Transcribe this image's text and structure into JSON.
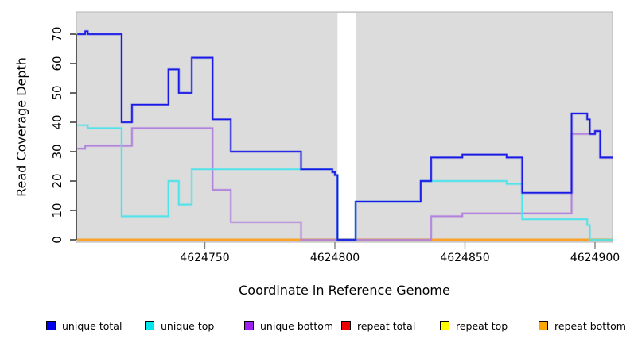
{
  "chart_data": {
    "type": "line",
    "subtype": "step-function-coverage-plot",
    "title": "",
    "xlabel": "Coordinate in Reference Genome",
    "ylabel": "Read Coverage Depth",
    "xlim": [
      4624701,
      4624907
    ],
    "ylim": [
      0,
      73
    ],
    "x_ticks": [
      4624750,
      4624800,
      4624850,
      4624900
    ],
    "y_ticks": [
      0,
      10,
      20,
      30,
      40,
      50,
      60,
      70
    ],
    "grid": false,
    "legend_position": "bottom",
    "panel_background": "#DCDCDC",
    "panel_border_color": "#B4B4B4",
    "gap_region": {
      "x_start": 4624801,
      "x_end": 4624808,
      "fill": "#FFFFFF"
    },
    "series": [
      {
        "name": "unique total",
        "color": "#0000EE",
        "line_color": "#1A1AE6",
        "steps": [
          [
            4624701,
            70
          ],
          [
            4624704,
            71
          ],
          [
            4624705,
            70
          ],
          [
            4624718,
            40
          ],
          [
            4624722,
            46
          ],
          [
            4624736,
            58
          ],
          [
            4624740,
            50
          ],
          [
            4624745,
            62
          ],
          [
            4624753,
            41
          ],
          [
            4624760,
            30
          ],
          [
            4624787,
            24
          ],
          [
            4624799,
            23
          ],
          [
            4624800,
            22
          ],
          [
            4624801,
            0
          ],
          [
            4624808,
            13
          ],
          [
            4624833,
            20
          ],
          [
            4624837,
            28
          ],
          [
            4624849,
            29
          ],
          [
            4624866,
            28
          ],
          [
            4624872,
            16
          ],
          [
            4624891,
            43
          ],
          [
            4624897,
            41
          ],
          [
            4624898,
            36
          ],
          [
            4624900,
            37
          ],
          [
            4624902,
            28
          ]
        ]
      },
      {
        "name": "unique top",
        "color": "#00E5EE",
        "line_color": "#4FE3EA",
        "steps": [
          [
            4624701,
            39
          ],
          [
            4624705,
            38
          ],
          [
            4624718,
            8
          ],
          [
            4624736,
            20
          ],
          [
            4624740,
            12
          ],
          [
            4624745,
            24
          ],
          [
            4624799,
            23
          ],
          [
            4624800,
            22
          ],
          [
            4624801,
            0
          ],
          [
            4624808,
            13
          ],
          [
            4624833,
            20
          ],
          [
            4624866,
            19
          ],
          [
            4624872,
            7
          ],
          [
            4624897,
            5
          ],
          [
            4624898,
            0
          ]
        ]
      },
      {
        "name": "unique bottom",
        "color": "#A020F0",
        "line_color": "#B183DC",
        "steps": [
          [
            4624701,
            31
          ],
          [
            4624704,
            32
          ],
          [
            4624722,
            38
          ],
          [
            4624753,
            17
          ],
          [
            4624760,
            6
          ],
          [
            4624787,
            0
          ],
          [
            4624837,
            8
          ],
          [
            4624849,
            9
          ],
          [
            4624891,
            36
          ],
          [
            4624900,
            37
          ],
          [
            4624902,
            28
          ]
        ]
      },
      {
        "name": "repeat total",
        "color": "#EE0000",
        "line_color": "#E05050",
        "steps": [
          [
            4624701,
            0
          ]
        ]
      },
      {
        "name": "repeat top",
        "color": "#FFFF00",
        "line_color": "#F0F000",
        "steps": [
          [
            4624701,
            0
          ]
        ]
      },
      {
        "name": "repeat bottom",
        "color": "#FFA500",
        "line_color": "#FF9E2A",
        "steps": [
          [
            4624701,
            0
          ]
        ]
      }
    ]
  }
}
